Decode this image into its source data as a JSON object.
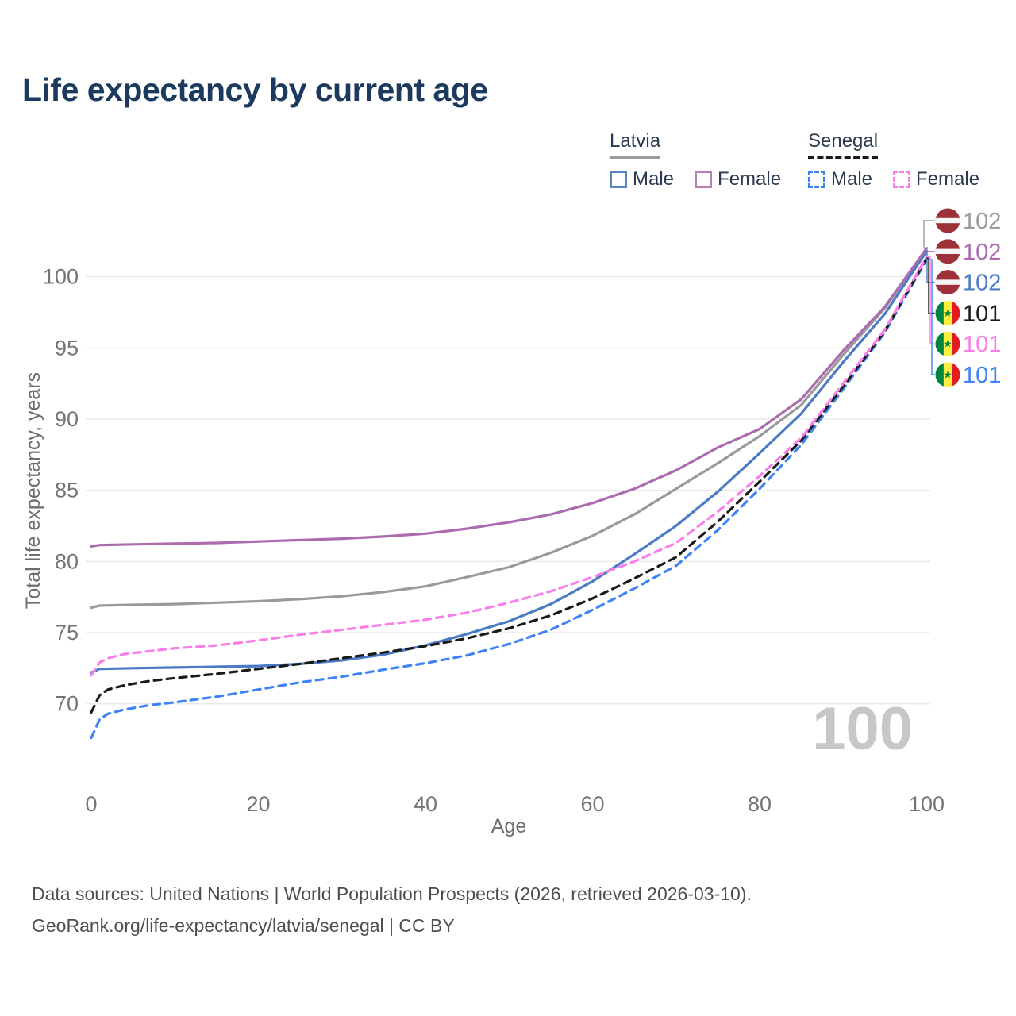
{
  "title": "Life expectancy by current age",
  "legend": {
    "latvia": {
      "name": "Latvia",
      "male_label": "Male",
      "female_label": "Female"
    },
    "senegal": {
      "name": "Senegal",
      "male_label": "Male",
      "female_label": "Female"
    }
  },
  "watermark": {
    "text": "100"
  },
  "footer": {
    "line1": "Data sources: United Nations | World Population Prospects (2026, retrieved 2026-03-10).",
    "line2": "GeoRank.org/life-expectancy/latvia/senegal | CC BY"
  },
  "colors": {
    "title": "#1c3a5e",
    "latvia_all": "#9a9a9a",
    "latvia_female": "#ad6baf",
    "latvia_male": "#4b7bc5",
    "senegal_all": "#1a1a1a",
    "senegal_female": "#fb7de9",
    "senegal_male": "#3e82f7",
    "gridline": "#e9e9e9",
    "tick_text": "#757575",
    "watermark": "#c7c7c7",
    "flag_latvia_red": "#9E3039",
    "flag_senegal_green": "#00853F",
    "flag_senegal_yellow": "#FDEF42",
    "flag_senegal_red": "#E31B23"
  },
  "end_labels": [
    {
      "series": "latvia_all",
      "flag": "latvia",
      "value": "102",
      "color": "#9a9a9a"
    },
    {
      "series": "latvia_female",
      "flag": "latvia",
      "value": "102",
      "color": "#ad6baf"
    },
    {
      "series": "latvia_male",
      "flag": "latvia",
      "value": "102",
      "color": "#4b7bc5"
    },
    {
      "series": "senegal_all",
      "flag": "senegal",
      "value": "101",
      "color": "#1a1a1a"
    },
    {
      "series": "senegal_female",
      "flag": "senegal",
      "value": "101",
      "color": "#fb7de9"
    },
    {
      "series": "senegal_male",
      "flag": "senegal",
      "value": "101",
      "color": "#3e82f7"
    }
  ],
  "chart_data": {
    "type": "line",
    "title": "Life expectancy by current age",
    "xlabel": "Age",
    "ylabel": "Total life expectancy, years",
    "xlim": [
      0,
      100
    ],
    "ylim": [
      66,
      104
    ],
    "xticks": [
      0,
      20,
      40,
      60,
      80,
      100
    ],
    "yticks": [
      70,
      75,
      80,
      85,
      90,
      95,
      100
    ],
    "grid": "horizontal",
    "legend_position": "top-right",
    "series": [
      {
        "key": "latvia_all",
        "name": "Latvia (all)",
        "color": "#9a9a9a",
        "dash": "solid",
        "points": [
          [
            0,
            76.75
          ],
          [
            1,
            76.9
          ],
          [
            5,
            76.95
          ],
          [
            10,
            77.0
          ],
          [
            15,
            77.1
          ],
          [
            20,
            77.2
          ],
          [
            25,
            77.35
          ],
          [
            30,
            77.55
          ],
          [
            35,
            77.85
          ],
          [
            40,
            78.25
          ],
          [
            45,
            78.9
          ],
          [
            50,
            79.6
          ],
          [
            55,
            80.6
          ],
          [
            60,
            81.8
          ],
          [
            65,
            83.3
          ],
          [
            70,
            85.1
          ],
          [
            75,
            86.9
          ],
          [
            80,
            88.8
          ],
          [
            85,
            91.0
          ],
          [
            90,
            94.5
          ],
          [
            95,
            97.8
          ],
          [
            100,
            102.0
          ]
        ]
      },
      {
        "key": "latvia_male",
        "name": "Latvia male",
        "color": "#4b7bc5",
        "dash": "solid",
        "points": [
          [
            0,
            72.2
          ],
          [
            1,
            72.45
          ],
          [
            5,
            72.5
          ],
          [
            10,
            72.55
          ],
          [
            15,
            72.6
          ],
          [
            20,
            72.65
          ],
          [
            25,
            72.8
          ],
          [
            30,
            73.05
          ],
          [
            35,
            73.45
          ],
          [
            40,
            74.1
          ],
          [
            45,
            74.9
          ],
          [
            50,
            75.8
          ],
          [
            55,
            77.0
          ],
          [
            60,
            78.6
          ],
          [
            65,
            80.5
          ],
          [
            70,
            82.5
          ],
          [
            75,
            84.9
          ],
          [
            80,
            87.6
          ],
          [
            85,
            90.4
          ],
          [
            90,
            94.0
          ],
          [
            95,
            97.4
          ],
          [
            100,
            101.8
          ]
        ]
      },
      {
        "key": "senegal_male",
        "name": "Senegal male",
        "color": "#3e82f7",
        "dash": "dashed",
        "points": [
          [
            0,
            67.6
          ],
          [
            1,
            68.9
          ],
          [
            2,
            69.3
          ],
          [
            4,
            69.6
          ],
          [
            7,
            69.9
          ],
          [
            10,
            70.1
          ],
          [
            15,
            70.5
          ],
          [
            20,
            71.0
          ],
          [
            25,
            71.5
          ],
          [
            30,
            71.9
          ],
          [
            35,
            72.4
          ],
          [
            40,
            72.85
          ],
          [
            45,
            73.4
          ],
          [
            50,
            74.2
          ],
          [
            55,
            75.2
          ],
          [
            60,
            76.6
          ],
          [
            65,
            78.1
          ],
          [
            70,
            79.7
          ],
          [
            75,
            82.2
          ],
          [
            80,
            85.1
          ],
          [
            85,
            88.2
          ],
          [
            90,
            92.1
          ],
          [
            95,
            96.1
          ],
          [
            100,
            101.2
          ]
        ]
      },
      {
        "key": "senegal_all",
        "name": "Senegal (all)",
        "color": "#1a1a1a",
        "dash": "dashed",
        "points": [
          [
            0,
            69.4
          ],
          [
            1,
            70.6
          ],
          [
            2,
            71.0
          ],
          [
            4,
            71.3
          ],
          [
            7,
            71.6
          ],
          [
            10,
            71.8
          ],
          [
            15,
            72.1
          ],
          [
            20,
            72.45
          ],
          [
            25,
            72.8
          ],
          [
            30,
            73.2
          ],
          [
            35,
            73.6
          ],
          [
            40,
            74.05
          ],
          [
            45,
            74.6
          ],
          [
            50,
            75.3
          ],
          [
            55,
            76.2
          ],
          [
            60,
            77.4
          ],
          [
            65,
            78.8
          ],
          [
            70,
            80.3
          ],
          [
            75,
            82.8
          ],
          [
            80,
            85.6
          ],
          [
            85,
            88.5
          ],
          [
            90,
            92.3
          ],
          [
            95,
            96.2
          ],
          [
            100,
            101.3
          ]
        ]
      },
      {
        "key": "senegal_female",
        "name": "Senegal female",
        "color": "#fb7de9",
        "dash": "dashed",
        "points": [
          [
            0,
            72.0
          ],
          [
            1,
            72.9
          ],
          [
            2,
            73.2
          ],
          [
            4,
            73.5
          ],
          [
            7,
            73.7
          ],
          [
            10,
            73.9
          ],
          [
            15,
            74.1
          ],
          [
            20,
            74.45
          ],
          [
            25,
            74.85
          ],
          [
            30,
            75.2
          ],
          [
            35,
            75.55
          ],
          [
            40,
            75.9
          ],
          [
            45,
            76.4
          ],
          [
            50,
            77.1
          ],
          [
            55,
            77.9
          ],
          [
            60,
            78.9
          ],
          [
            65,
            80.0
          ],
          [
            70,
            81.3
          ],
          [
            75,
            83.5
          ],
          [
            80,
            86.0
          ],
          [
            85,
            88.7
          ],
          [
            90,
            92.5
          ],
          [
            95,
            96.3
          ],
          [
            100,
            101.4
          ]
        ]
      },
      {
        "key": "latvia_female",
        "name": "Latvia female",
        "color": "#ad6baf",
        "dash": "solid",
        "points": [
          [
            0,
            81.05
          ],
          [
            1,
            81.15
          ],
          [
            5,
            81.2
          ],
          [
            10,
            81.25
          ],
          [
            15,
            81.3
          ],
          [
            20,
            81.4
          ],
          [
            25,
            81.5
          ],
          [
            30,
            81.6
          ],
          [
            35,
            81.75
          ],
          [
            40,
            81.95
          ],
          [
            45,
            82.3
          ],
          [
            50,
            82.75
          ],
          [
            55,
            83.3
          ],
          [
            60,
            84.1
          ],
          [
            65,
            85.1
          ],
          [
            70,
            86.4
          ],
          [
            75,
            88.0
          ],
          [
            80,
            89.3
          ],
          [
            85,
            91.4
          ],
          [
            90,
            94.8
          ],
          [
            95,
            97.9
          ],
          [
            100,
            102.0
          ]
        ]
      }
    ]
  }
}
